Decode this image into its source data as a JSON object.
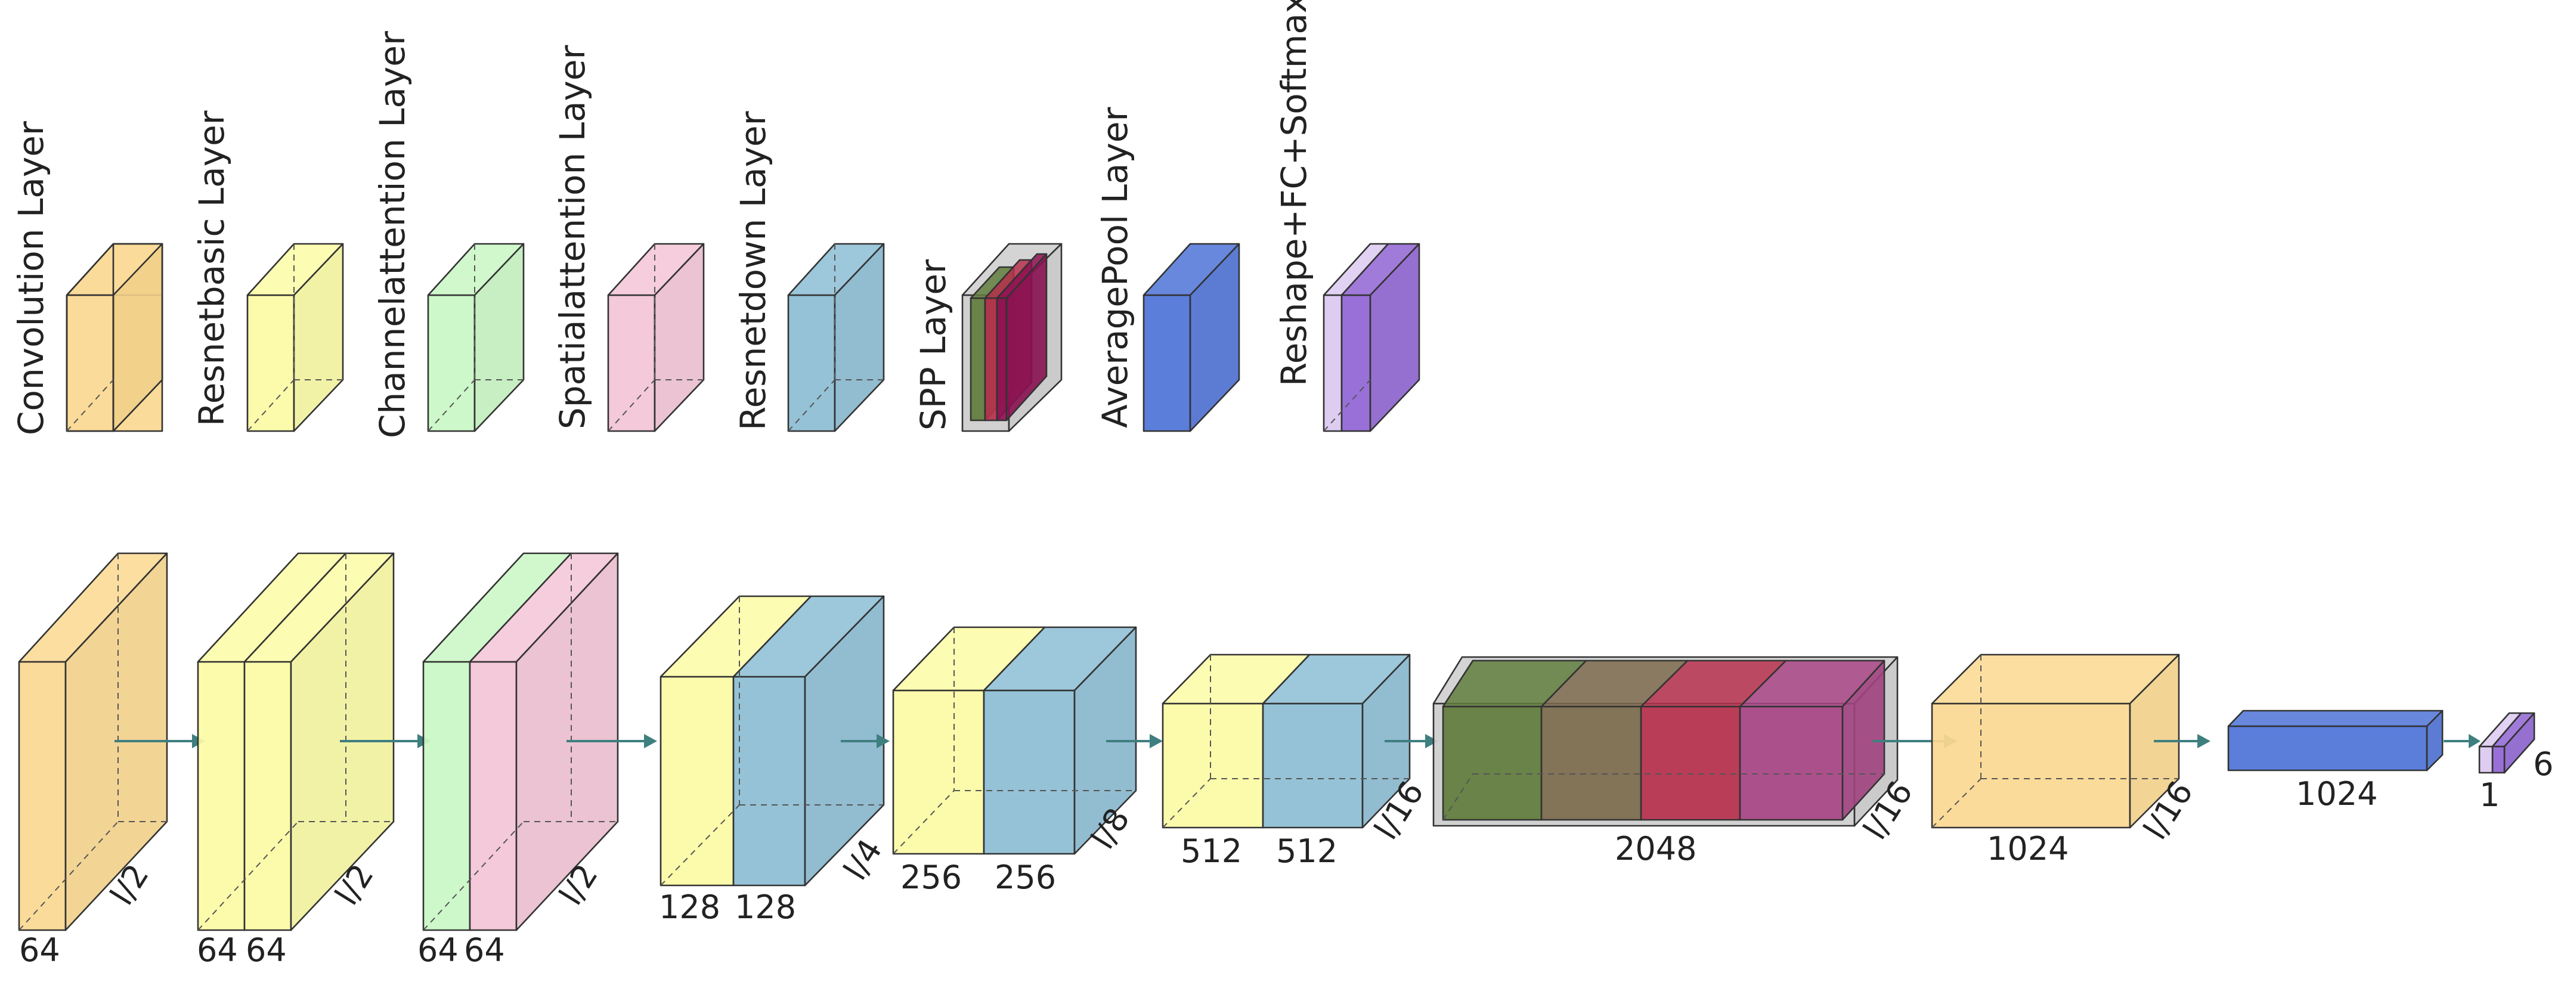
{
  "colors": {
    "convolution": "#fbd890",
    "resnetbasic": "#fbfba4",
    "channelattention": "#c9f7c4",
    "spatialattention": "#f3c4d6",
    "resnetdown": "#8cbdd3",
    "spp_frame": "#cdcdcd",
    "spp_1": "#607c3c",
    "spp_2": "#7c6a4c",
    "spp_3": "#b6304c",
    "spp_4": "#8e1254",
    "spp_5": "#a84484",
    "averagepool": "#4d73d8",
    "reshape_light": "#dcc9f0",
    "reshape_dark": "#9064d4",
    "arrow": "#3f7f80"
  },
  "legend": [
    {
      "key": "convolution",
      "label": "Convolution Layer"
    },
    {
      "key": "resnetbasic",
      "label": "Resnetbasic Layer"
    },
    {
      "key": "channelattention",
      "label": "Channelattention Layer"
    },
    {
      "key": "spatialattention",
      "label": "Spatialattention Layer"
    },
    {
      "key": "resnetdown",
      "label": "Resnetdown Layer"
    },
    {
      "key": "spp",
      "label": "SPP Layer"
    },
    {
      "key": "averagepool",
      "label": "AveragePool Layer"
    },
    {
      "key": "reshape",
      "label": "Reshape+FC+Softmax"
    }
  ],
  "pipeline": [
    {
      "stage": "conv",
      "channels": [
        "64"
      ],
      "scale": "l/2"
    },
    {
      "stage": "resnetbasic",
      "channels": [
        "64",
        "64"
      ],
      "scale": "l/2"
    },
    {
      "stage": "attention",
      "channels": [
        "64",
        "64"
      ],
      "scale": "l/2"
    },
    {
      "stage": "down1",
      "channels": [
        "128",
        "128"
      ],
      "scale": "l/4"
    },
    {
      "stage": "down2",
      "channels": [
        "256",
        "256"
      ],
      "scale": "l/8"
    },
    {
      "stage": "down3",
      "channels": [
        "512",
        "512"
      ],
      "scale": "l/16"
    },
    {
      "stage": "spp",
      "channels": [
        "2048"
      ],
      "scale": "l/16"
    },
    {
      "stage": "conv2",
      "channels": [
        "1024"
      ],
      "scale": "l/16"
    },
    {
      "stage": "avgpool",
      "channels": [
        "1024"
      ]
    },
    {
      "stage": "output",
      "channels": [
        "1",
        "6"
      ]
    }
  ]
}
